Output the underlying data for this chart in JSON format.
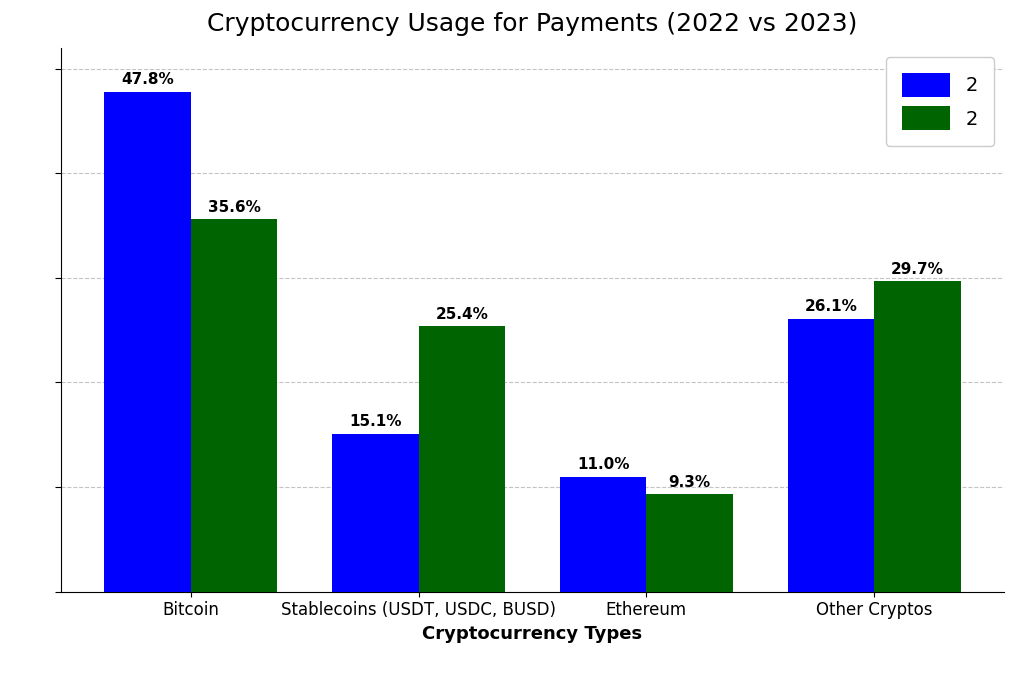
{
  "title": "Cryptocurrency Usage for Payments (2022 vs 2023)",
  "xlabel": "Cryptocurrency Types",
  "ylabel": "",
  "categories": [
    "Bitcoin",
    "Stablecoins (USDT, USDC, BUSD)",
    "Ethereum",
    "Other Cryptos"
  ],
  "values_2022": [
    47.8,
    15.1,
    11.0,
    26.1
  ],
  "values_2023": [
    35.6,
    25.4,
    9.3,
    29.7
  ],
  "color_2022": "#0000FF",
  "color_2023": "#006400",
  "legend_2022": "2",
  "legend_2023": "2",
  "ylim": [
    0,
    52
  ],
  "bar_width": 0.38,
  "background_color": "#FFFFFF",
  "grid_color": "#AAAAAA",
  "title_fontsize": 18,
  "label_fontsize": 13,
  "tick_fontsize": 12,
  "annotation_fontsize": 11,
  "ytick_step": 10
}
